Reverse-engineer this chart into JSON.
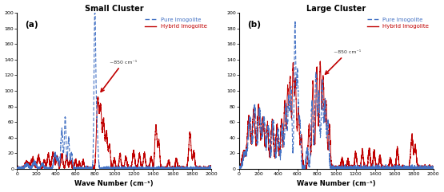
{
  "panel_a_title": "Small Cluster",
  "panel_b_title": "Large Cluster",
  "xlabel": "Wave Number (cm⁻¹)",
  "xlim": [
    0,
    2000
  ],
  "ylim": [
    0,
    200
  ],
  "pure_color": "#4472C4",
  "hybrid_color": "#C00000",
  "legend_pure": "Pure Imogolite",
  "legend_hybrid": "Hybrid Imogolite",
  "annotation_text": "~850 cm⁻¹",
  "label_a": "(a)",
  "label_b": "(b)"
}
